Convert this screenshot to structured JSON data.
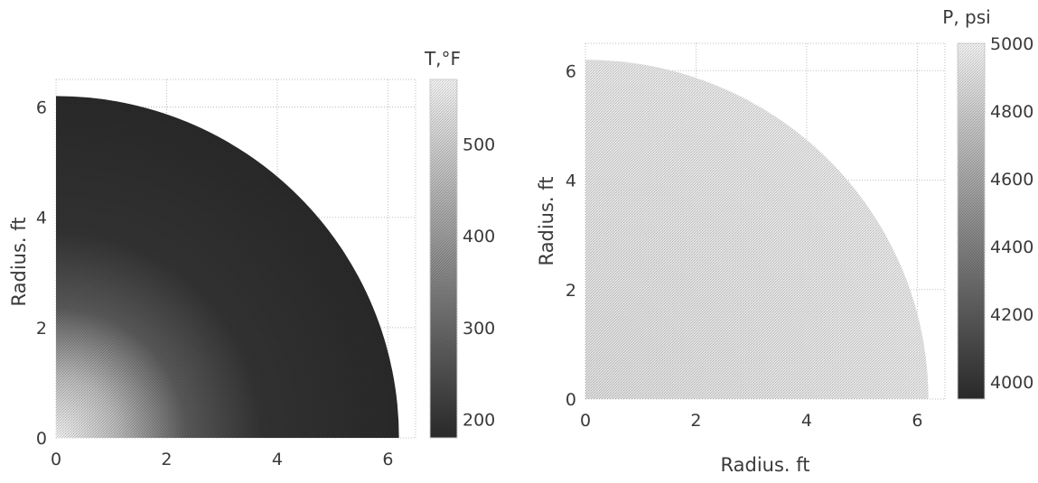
{
  "chart_data": [
    {
      "type": "heatmap",
      "title": "",
      "xlabel": "",
      "ylabel": "Radius. ft",
      "xlim": [
        0,
        6.5
      ],
      "ylim": [
        0,
        6.5
      ],
      "x_ticks": [
        "0",
        "2",
        "4",
        "6"
      ],
      "y_ticks": [
        "0",
        "2",
        "4",
        "6"
      ],
      "grid": true,
      "region": "quarter-disk",
      "radius_extent": 6.2,
      "colorbar": {
        "title": "T,°F",
        "range": [
          180,
          570
        ],
        "ticks": [
          "200",
          "300",
          "400",
          "500"
        ],
        "low_color": "#2b2b2b",
        "high_color": "#f2f2f2"
      },
      "field": {
        "description": "hot near-origin corner fading to dark interior",
        "value_at_origin": 560,
        "value_far": 185
      }
    },
    {
      "type": "heatmap",
      "title": "",
      "xlabel": "Radius. ft",
      "ylabel": "Radius. ft",
      "xlim": [
        0,
        6.5
      ],
      "ylim": [
        0,
        6.5
      ],
      "x_ticks": [
        "0",
        "2",
        "4",
        "6"
      ],
      "y_ticks": [
        "0",
        "2",
        "4",
        "6"
      ],
      "grid": true,
      "region": "quarter-disk",
      "radius_extent": 6.2,
      "colorbar": {
        "title": "P, psi",
        "range": [
          3950,
          5000
        ],
        "ticks": [
          "4000",
          "4200",
          "4400",
          "4600",
          "4800",
          "5000"
        ],
        "low_color": "#2b2b2b",
        "high_color": "#f2f2f2"
      },
      "field": {
        "description": "nearly uniform high pressure",
        "value_at_origin": 4920,
        "value_far": 4960
      }
    }
  ]
}
